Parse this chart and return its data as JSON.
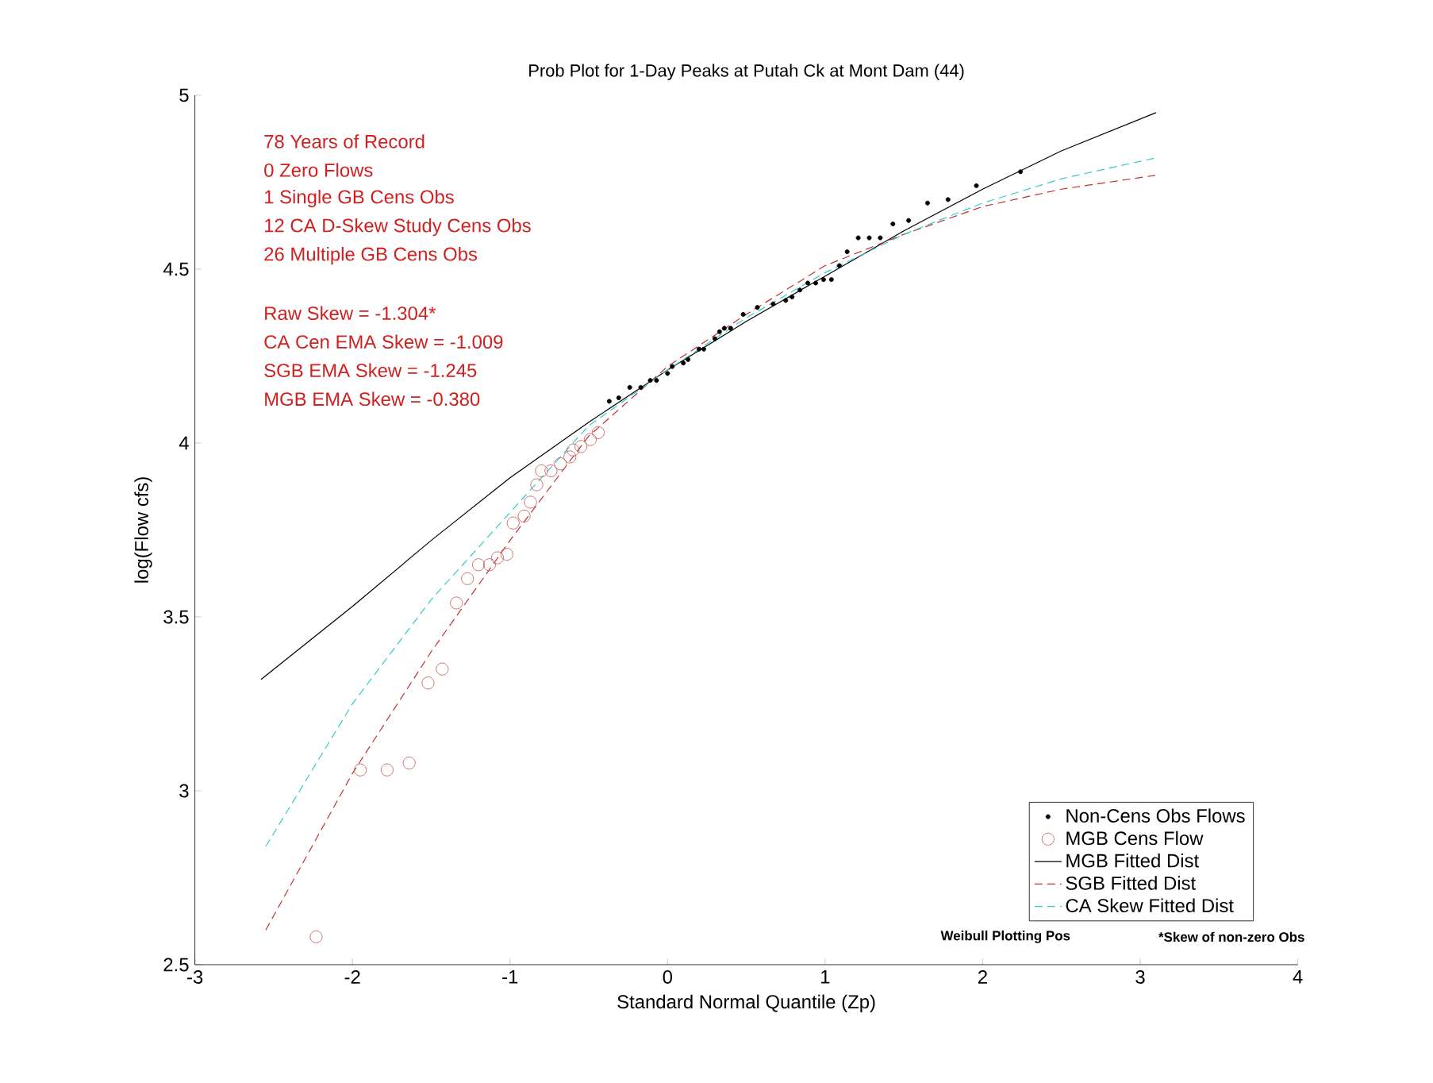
{
  "chart_data": {
    "type": "scatter",
    "title": "Prob Plot for 1-Day Peaks at Putah Ck at Mont Dam (44)",
    "xlabel": "Standard Normal Quantile (Zp)",
    "ylabel": "log(Flow cfs)",
    "xlim": [
      -3,
      4
    ],
    "ylim": [
      2.5,
      5
    ],
    "xticks": [
      -3,
      -2,
      -1,
      0,
      1,
      2,
      3,
      4
    ],
    "yticks": [
      2.5,
      3,
      3.5,
      4,
      4.5,
      5
    ],
    "grid": false,
    "legend": "bottom right",
    "annotations": [
      "78 Years of Record",
      "0 Zero Flows",
      "1 Single GB Cens Obs",
      "12 CA D-Skew Study Cens Obs",
      "26 Multiple GB Cens Obs",
      "Raw Skew = -1.304*",
      "CA Cen EMA Skew = -1.009",
      "SGB EMA Skew = -1.245",
      "MGB EMA Skew = -0.380",
      "Weibull Plotting Pos",
      "*Skew of non-zero Obs"
    ],
    "series": [
      {
        "name": "Non-Cens Obs Flows",
        "marker": "circle",
        "color": "#000000",
        "x": [
          -0.37,
          -0.31,
          -0.24,
          -0.17,
          -0.11,
          -0.07,
          0.0,
          0.03,
          0.1,
          0.13,
          0.2,
          0.23,
          0.3,
          0.33,
          0.36,
          0.4,
          0.48,
          0.57,
          0.67,
          0.75,
          0.79,
          0.84,
          0.89,
          0.94,
          0.99,
          1.04,
          1.09,
          1.14,
          1.21,
          1.28,
          1.35,
          1.43,
          1.53,
          1.65,
          1.78,
          1.96,
          2.24
        ],
        "values": [
          4.12,
          4.13,
          4.16,
          4.16,
          4.18,
          4.18,
          4.2,
          4.22,
          4.23,
          4.24,
          4.27,
          4.27,
          4.3,
          4.32,
          4.33,
          4.33,
          4.37,
          4.39,
          4.4,
          4.41,
          4.42,
          4.44,
          4.46,
          4.46,
          4.47,
          4.47,
          4.51,
          4.55,
          4.59,
          4.59,
          4.59,
          4.63,
          4.64,
          4.69,
          4.7,
          4.74,
          4.78
        ]
      },
      {
        "name": "MGB Cens Flow",
        "marker": "circle",
        "color": "#c0504d",
        "x": [
          -2.23,
          -1.95,
          -1.78,
          -1.64,
          -1.52,
          -1.43,
          -1.34,
          -1.27,
          -1.2,
          -1.13,
          -1.08,
          -1.02,
          -0.98,
          -0.91,
          -0.87,
          -0.83,
          -0.8,
          -0.74,
          -0.68,
          -0.62,
          -0.6,
          -0.55,
          -0.49,
          -0.44
        ],
        "values": [
          2.58,
          3.06,
          3.06,
          3.08,
          3.31,
          3.35,
          3.54,
          3.61,
          3.65,
          3.65,
          3.67,
          3.68,
          3.77,
          3.79,
          3.83,
          3.88,
          3.92,
          3.92,
          3.94,
          3.96,
          3.98,
          3.99,
          4.01,
          4.03
        ]
      },
      {
        "name": "MGB Fitted Dist",
        "type": "line",
        "marker": "none",
        "line_style": "solid",
        "color": "#000000",
        "x": [
          -2.58,
          -2,
          -1.5,
          -1,
          -0.5,
          0,
          0.5,
          1,
          1.5,
          2,
          2.5,
          3.1
        ],
        "values": [
          3.32,
          3.53,
          3.72,
          3.9,
          4.06,
          4.21,
          4.35,
          4.48,
          4.61,
          4.73,
          4.84,
          4.95
        ]
      },
      {
        "name": "SGB Fitted Dist",
        "type": "line",
        "marker": "none",
        "line_style": "dashed",
        "color": "#c03030",
        "x": [
          -2.55,
          -2,
          -1.5,
          -1,
          -0.5,
          0,
          0.5,
          1,
          1.5,
          2,
          2.5,
          3.1
        ],
        "values": [
          2.6,
          3.05,
          3.4,
          3.72,
          4.02,
          4.22,
          4.37,
          4.51,
          4.6,
          4.68,
          4.73,
          4.77
        ]
      },
      {
        "name": "CA Skew Fitted Dist",
        "type": "line",
        "marker": "none",
        "line_style": "dashed",
        "color": "#33cccc",
        "x": [
          -2.55,
          -2,
          -1.5,
          -1,
          -0.5,
          0,
          0.5,
          1,
          1.5,
          2,
          2.5,
          3.1
        ],
        "values": [
          2.84,
          3.25,
          3.55,
          3.8,
          4.05,
          4.21,
          4.36,
          4.49,
          4.6,
          4.69,
          4.76,
          4.82
        ]
      }
    ]
  }
}
